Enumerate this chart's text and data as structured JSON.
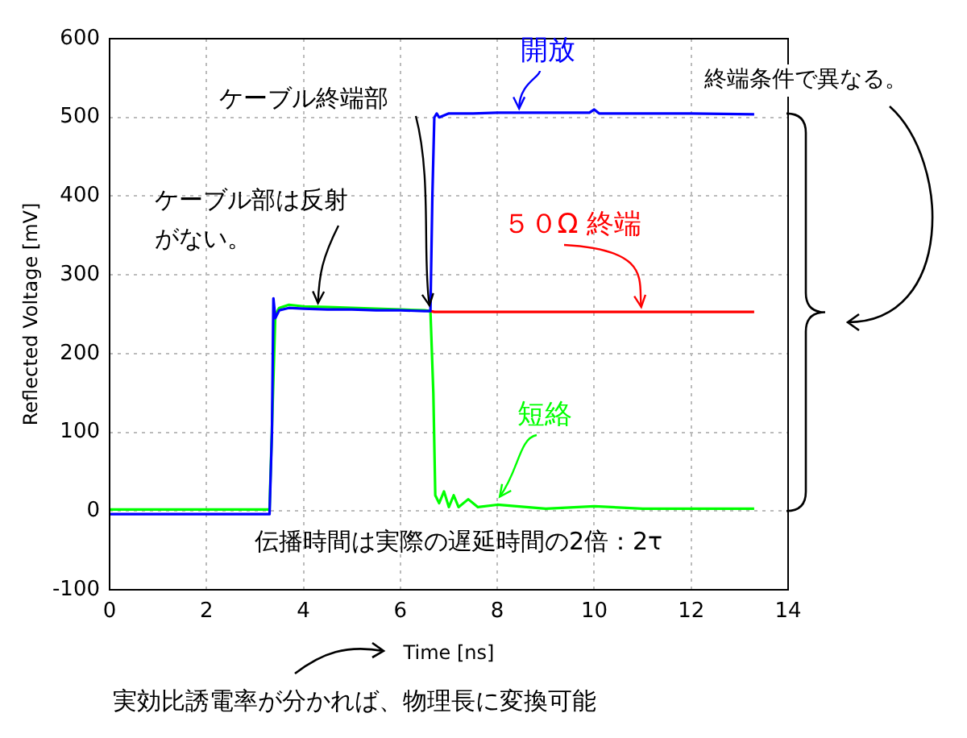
{
  "chart_data": {
    "type": "line",
    "xlabel": "Time [ns]",
    "ylabel": "Reflected Voltage [mV]",
    "xlim": [
      0,
      14
    ],
    "xticks": [
      0,
      2,
      4,
      6,
      8,
      10,
      12,
      14
    ],
    "ylim": [
      -100,
      600
    ],
    "yticks": [
      -100,
      0,
      100,
      200,
      300,
      400,
      500,
      600
    ],
    "grid": true,
    "legend": false,
    "marker": "none",
    "line_style": "solid",
    "series": [
      {
        "name": "開放",
        "color": "#0000ff",
        "x": [
          0,
          1,
          2,
          3,
          3.3,
          3.35,
          3.38,
          3.42,
          3.5,
          3.7,
          4,
          4.5,
          5,
          5.5,
          6,
          6.5,
          6.62,
          6.66,
          6.7,
          6.75,
          6.8,
          7,
          7.5,
          8,
          9,
          9.9,
          10,
          10.1,
          11,
          12,
          13.3
        ],
        "values": [
          -4,
          -4,
          -4,
          -4,
          -4,
          100,
          270,
          245,
          255,
          258,
          257,
          256,
          256,
          255,
          255,
          254,
          254,
          400,
          500,
          505,
          500,
          505,
          505,
          506,
          506,
          506,
          510,
          505,
          505,
          505,
          504
        ]
      },
      {
        "name": "５０Ω 終端",
        "color": "#ff0000",
        "x": [
          6.62,
          6.7,
          8,
          10,
          12,
          13.3
        ],
        "values": [
          254,
          253,
          253,
          253,
          253,
          253
        ]
      },
      {
        "name": "短絡",
        "color": "#00ff00",
        "x": [
          0,
          1,
          2,
          3,
          3.3,
          3.42,
          3.5,
          3.7,
          4,
          4.5,
          5,
          5.5,
          6,
          6.5,
          6.62,
          6.68,
          6.72,
          6.8,
          6.9,
          7,
          7.1,
          7.2,
          7.4,
          7.6,
          8,
          9,
          10,
          11,
          13.3
        ],
        "values": [
          2,
          2,
          2,
          2,
          2,
          250,
          258,
          262,
          260,
          259,
          258,
          257,
          256,
          255,
          254,
          150,
          20,
          10,
          25,
          5,
          20,
          5,
          15,
          5,
          8,
          3,
          6,
          3,
          3
        ]
      }
    ],
    "annotations": [
      {
        "text": "ケーブル終端部",
        "x": 6.6,
        "y": 255
      },
      {
        "text": "ケーブル部は反射がない。",
        "x": 4.3,
        "y": 258
      },
      "伝播時間は実際の遅延時間の2倍：2τ",
      "終端条件で異なる。",
      "実効比誘電率が分かれば、物理長に変換可能"
    ]
  }
}
